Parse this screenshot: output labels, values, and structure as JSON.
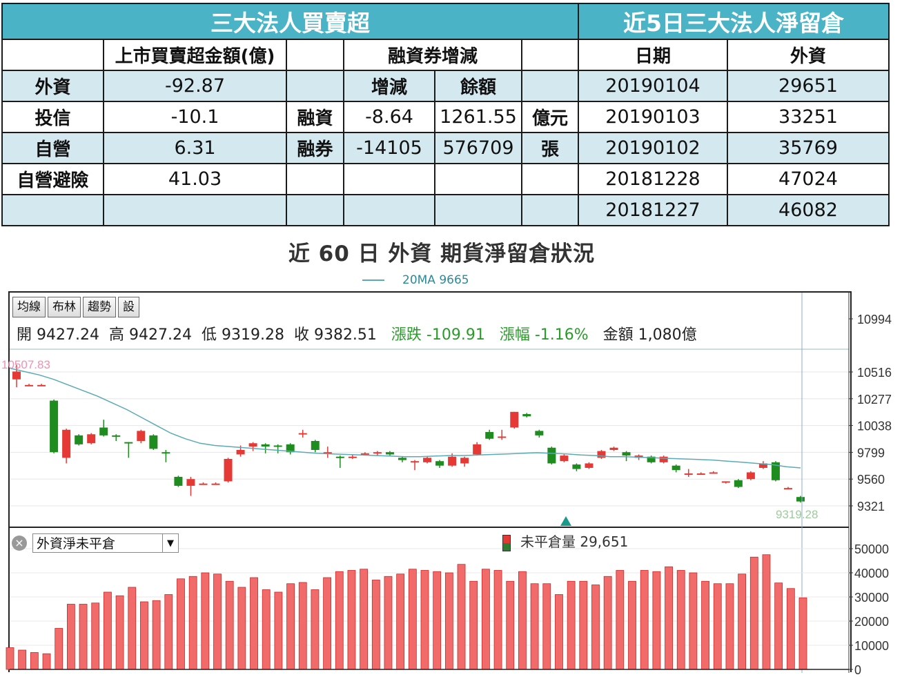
{
  "table": {
    "title_left": "三大法人買賣超",
    "title_right": "近5日三大法人淨留倉",
    "col_amount": "上市買賣超金額(億)",
    "col_margin": "融資券增減",
    "col_date": "日期",
    "col_foreign": "外資",
    "sub_change": "增減",
    "sub_balance": "餘額",
    "rows": [
      {
        "label": "外資",
        "amount": "-92.87"
      },
      {
        "label": "投信",
        "amount": "-10.1"
      },
      {
        "label": "自營",
        "amount": "6.31"
      },
      {
        "label": "自營避險",
        "amount": "41.03"
      },
      {
        "label": "",
        "amount": ""
      }
    ],
    "margin": [
      {
        "label": "融資",
        "change": "-8.64",
        "balance": "1261.55",
        "unit": "億元"
      },
      {
        "label": "融券",
        "change": "-14105",
        "balance": "576709",
        "unit": "張"
      }
    ],
    "positions": [
      {
        "date": "20190104",
        "foreign": "29651"
      },
      {
        "date": "20190103",
        "foreign": "33251"
      },
      {
        "date": "20190102",
        "foreign": "35769"
      },
      {
        "date": "20181228",
        "foreign": "47024"
      },
      {
        "date": "20181227",
        "foreign": "46082"
      }
    ]
  },
  "chart_title": "近 60 日 外資 期貨淨留倉狀況",
  "legend_ma": "20MA 9665",
  "toolbar": {
    "b1": "均線",
    "b2": "布林",
    "b3": "趨勢",
    "b4": "設"
  },
  "ohlc": {
    "open": "開 9427.24",
    "high": "高 9427.24",
    "low": "低 9319.28",
    "close": "收 9382.51",
    "chg": "漲跌 -109.91",
    "pct": "漲幅 -1.16%",
    "amt": "金額 1,080億"
  },
  "series_select": "外資淨未平倉",
  "oi_label": "未平倉量 29,651",
  "colors": {
    "up": "#e53935",
    "down": "#1e8c1e",
    "ma": "#5aaab5",
    "bar": "#f26b6b",
    "header": "#4ab3c6"
  },
  "chart_data": [
    {
      "type": "candlestick",
      "y_ticks": [
        "10994",
        "10516",
        "10277",
        "10038",
        "9799",
        "9560",
        "9321"
      ],
      "y_range": [
        9220,
        11120
      ],
      "hi_label": "10507.83",
      "lo_label": "9319.28",
      "ma_label": "20MA 9665",
      "candles": [
        [
          10450,
          10520,
          10380,
          10580
        ],
        [
          10400,
          10400,
          10390,
          10410
        ],
        [
          10400,
          10400,
          10390,
          10410
        ],
        [
          10260,
          9800,
          9790,
          10270
        ],
        [
          9750,
          10000,
          9700,
          10010
        ],
        [
          9950,
          9870,
          9860,
          9960
        ],
        [
          9880,
          9960,
          9870,
          9970
        ],
        [
          10020,
          9950,
          9940,
          10090
        ],
        [
          9950,
          9940,
          9900,
          9960
        ],
        [
          9890,
          9880,
          9750,
          9890
        ],
        [
          9900,
          9990,
          9880,
          10000
        ],
        [
          9950,
          9830,
          9820,
          9960
        ],
        [
          9800,
          9790,
          9710,
          9820
        ],
        [
          9580,
          9500,
          9490,
          9590
        ],
        [
          9500,
          9560,
          9410,
          9580
        ],
        [
          9520,
          9520,
          9510,
          9530
        ],
        [
          9520,
          9520,
          9510,
          9530
        ],
        [
          9540,
          9740,
          9530,
          9750
        ],
        [
          9780,
          9820,
          9760,
          9860
        ],
        [
          9850,
          9880,
          9810,
          9890
        ],
        [
          9870,
          9850,
          9790,
          9880
        ],
        [
          9860,
          9850,
          9790,
          9870
        ],
        [
          9870,
          9800,
          9780,
          9880
        ],
        [
          9960,
          9970,
          9930,
          10000
        ],
        [
          9900,
          9820,
          9800,
          9910
        ],
        [
          9800,
          9800,
          9750,
          9850
        ],
        [
          9760,
          9750,
          9660,
          9770
        ],
        [
          9750,
          9760,
          9740,
          9780
        ],
        [
          9780,
          9790,
          9770,
          9800
        ],
        [
          9790,
          9800,
          9770,
          9810
        ],
        [
          9800,
          9780,
          9770,
          9810
        ],
        [
          9750,
          9730,
          9710,
          9760
        ],
        [
          9720,
          9720,
          9640,
          9730
        ],
        [
          9710,
          9750,
          9700,
          9760
        ],
        [
          9720,
          9680,
          9660,
          9730
        ],
        [
          9680,
          9760,
          9670,
          9790
        ],
        [
          9700,
          9750,
          9670,
          9760
        ],
        [
          9780,
          9870,
          9770,
          9890
        ],
        [
          9980,
          9920,
          9910,
          10000
        ],
        [
          9940,
          9940,
          9910,
          10000
        ],
        [
          10020,
          10160,
          10010,
          10160
        ],
        [
          10140,
          10120,
          10110,
          10150
        ],
        [
          9990,
          9950,
          9930,
          10000
        ],
        [
          9840,
          9700,
          9690,
          9850
        ],
        [
          9720,
          9770,
          9710,
          9780
        ],
        [
          9690,
          9650,
          9630,
          9700
        ],
        [
          9660,
          9700,
          9650,
          9710
        ],
        [
          9750,
          9810,
          9740,
          9820
        ],
        [
          9820,
          9840,
          9810,
          9850
        ],
        [
          9800,
          9770,
          9720,
          9810
        ],
        [
          9750,
          9770,
          9730,
          9780
        ],
        [
          9760,
          9710,
          9700,
          9770
        ],
        [
          9710,
          9760,
          9700,
          9770
        ],
        [
          9680,
          9640,
          9620,
          9690
        ],
        [
          9610,
          9610,
          9580,
          9650
        ],
        [
          9610,
          9610,
          9600,
          9620
        ],
        [
          9620,
          9620,
          9610,
          9630
        ],
        [
          9530,
          9540,
          9520,
          9540
        ],
        [
          9550,
          9490,
          9480,
          9560
        ],
        [
          9560,
          9620,
          9550,
          9630
        ],
        [
          9660,
          9700,
          9650,
          9720
        ],
        [
          9710,
          9550,
          9540,
          9720
        ],
        [
          9480,
          9480,
          9470,
          9490
        ],
        [
          9400,
          9360,
          9350,
          9410
        ]
      ],
      "ma": [
        10550,
        10520,
        10490,
        10450,
        10400,
        10350,
        10300,
        10240,
        10180,
        10110,
        10040,
        9970,
        9920,
        9880,
        9860,
        9850,
        9840,
        9830,
        9820,
        9810,
        9800,
        9790,
        9785,
        9780,
        9775,
        9770,
        9765,
        9760,
        9760,
        9765,
        9770,
        9770,
        9775,
        9780,
        9785,
        9790,
        9795,
        9790,
        9785,
        9775,
        9770,
        9760,
        9760,
        9755,
        9750,
        9745,
        9740,
        9735,
        9730,
        9720,
        9710,
        9700,
        9690,
        9670,
        9660
      ]
    },
    {
      "type": "bar",
      "series_name": "未平倉量",
      "y_ticks": [
        "50000",
        "40000",
        "30000",
        "20000",
        "10000",
        "0"
      ],
      "y_range": [
        0,
        50000
      ],
      "values": [
        9000,
        8000,
        7000,
        6500,
        17000,
        27000,
        27000,
        27500,
        32000,
        30500,
        34000,
        28000,
        28500,
        31000,
        37500,
        38500,
        40000,
        39500,
        36500,
        34000,
        38000,
        33000,
        32000,
        35500,
        36000,
        33000,
        38000,
        40500,
        41000,
        41500,
        37000,
        38500,
        39500,
        41500,
        41000,
        40500,
        40000,
        43500,
        36500,
        41500,
        41000,
        36500,
        40500,
        35500,
        35500,
        31000,
        36500,
        36500,
        35000,
        38500,
        41000,
        36500,
        41000,
        40500,
        42500,
        41000,
        40000,
        36500,
        35500,
        35500,
        39500,
        46500,
        47500,
        35800,
        33500,
        29651
      ]
    }
  ]
}
